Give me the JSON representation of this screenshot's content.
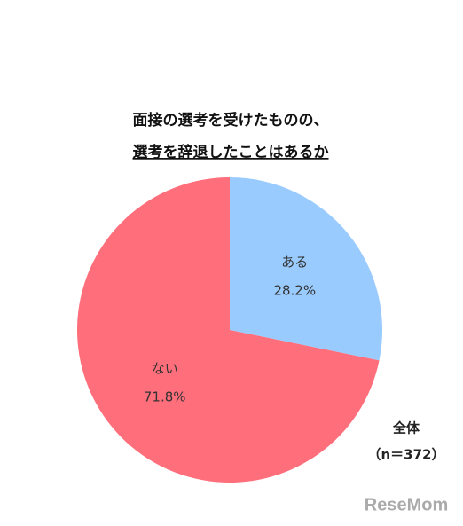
{
  "chart_data": {
    "type": "pie",
    "title": [
      "面接の選考を受けたものの、",
      "選考を辞退したことはあるか"
    ],
    "categories": [
      "ある",
      "ない"
    ],
    "values": [
      28.2,
      71.8
    ],
    "value_labels": [
      "28.2%",
      "71.8%"
    ],
    "colors": [
      "#99cbff",
      "#ff6e7b"
    ],
    "annotation": [
      "全体",
      "（n＝372）"
    ],
    "watermark": "ReseMom"
  }
}
